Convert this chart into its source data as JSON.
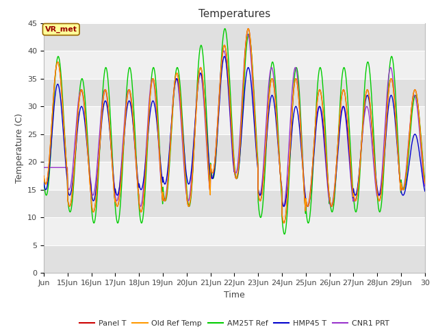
{
  "title": "Temperatures",
  "xlabel": "Time",
  "ylabel": "Temperature (C)",
  "ylim": [
    0,
    45
  ],
  "yticks": [
    0,
    5,
    10,
    15,
    20,
    25,
    30,
    35,
    40,
    45
  ],
  "xlim_start": 14.0,
  "xlim_end": 30.0,
  "xtick_positions": [
    14,
    15,
    16,
    17,
    18,
    19,
    20,
    21,
    22,
    23,
    24,
    25,
    26,
    27,
    28,
    29,
    30
  ],
  "xtick_labels": [
    "Jun",
    "15Jun",
    "16Jun",
    "17Jun",
    "18Jun",
    "19Jun",
    "20Jun",
    "21Jun",
    "22Jun",
    "23Jun",
    "24Jun",
    "25Jun",
    "26Jun",
    "27Jun",
    "28Jun",
    "29Jun",
    "30"
  ],
  "legend_entries": [
    "Panel T",
    "Old Ref Temp",
    "AM25T Ref",
    "HMP45 T",
    "CNR1 PRT"
  ],
  "colors": {
    "Panel T": "#cc0000",
    "Old Ref Temp": "#ff9900",
    "AM25T Ref": "#00cc00",
    "HMP45 T": "#0000cc",
    "CNR1 PRT": "#9933cc"
  },
  "figure_bg": "#ffffff",
  "plot_bg_light": "#f0f0f0",
  "plot_bg_dark": "#e0e0e0",
  "grid_color": "#ffffff",
  "annotation_text": "VR_met",
  "annotation_box_color": "#ffff99",
  "annotation_border_color": "#996600",
  "annotation_text_color": "#990000",
  "title_fontsize": 11,
  "axis_label_fontsize": 9,
  "tick_fontsize": 8,
  "legend_fontsize": 8,
  "day_maxes_panel": [
    38,
    33,
    33,
    33,
    35,
    36,
    37,
    41,
    44,
    35,
    35,
    33,
    33,
    33,
    35,
    33
  ],
  "day_maxes_am25t": [
    39,
    35,
    37,
    37,
    37,
    37,
    41,
    44,
    43,
    38,
    37,
    37,
    37,
    38,
    39,
    32
  ],
  "day_maxes_hmp45": [
    34,
    30,
    31,
    31,
    31,
    35,
    36,
    39,
    37,
    32,
    30,
    30,
    30,
    32,
    32,
    25
  ],
  "day_maxes_cnr1": [
    19,
    33,
    33,
    33,
    35,
    35,
    36,
    40,
    43,
    37,
    37,
    30,
    30,
    30,
    37,
    32
  ],
  "day_mins_panel": [
    16,
    12,
    11,
    12,
    11,
    13,
    12,
    18,
    17,
    13,
    9,
    12,
    12,
    13,
    13,
    15
  ],
  "day_mins_am25t": [
    14,
    11,
    9,
    9,
    9,
    13,
    12,
    17,
    17,
    10,
    7,
    9,
    11,
    11,
    11,
    15
  ],
  "day_mins_hmp45": [
    15,
    14,
    13,
    14,
    15,
    16,
    16,
    17,
    17,
    14,
    12,
    12,
    12,
    14,
    14,
    14
  ],
  "day_mins_cnr1": [
    19,
    15,
    14,
    13,
    12,
    13,
    13,
    17,
    18,
    14,
    12,
    12,
    12,
    13,
    14,
    15
  ]
}
